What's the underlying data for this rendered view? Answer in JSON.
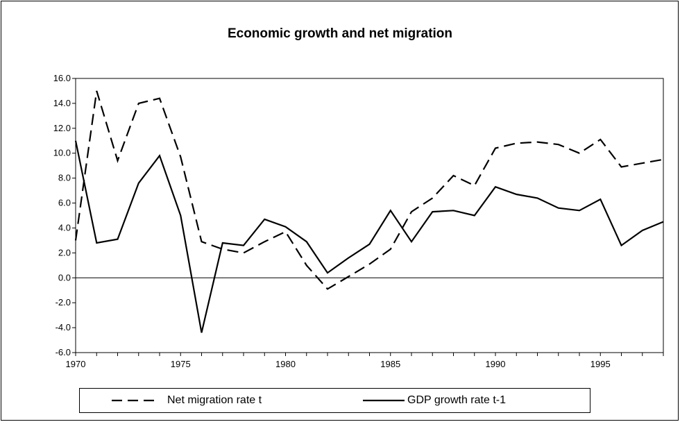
{
  "chart_data": {
    "type": "line",
    "title": "Economic growth and net migration",
    "xlabel": "",
    "ylabel": "",
    "xlim": [
      1970,
      1998
    ],
    "ylim": [
      -6.0,
      16.0
    ],
    "x_ticks": [
      1970,
      1975,
      1980,
      1985,
      1990,
      1995
    ],
    "x_tick_labels": [
      "1970",
      "1975",
      "1980",
      "1985",
      "1990",
      "1995"
    ],
    "y_ticks": [
      16,
      14,
      12,
      10,
      8,
      6,
      4,
      2,
      0,
      -2,
      -4,
      -6
    ],
    "y_tick_labels": [
      "16.0",
      "14.0",
      "12.0",
      "10.0",
      "8.0",
      "6.0",
      "4.0",
      "2.0",
      "0.0",
      "-2.0",
      "-4.0",
      "-6.0"
    ],
    "grid": false,
    "zero_line": true,
    "legend": "bottom",
    "x": [
      1970,
      1971,
      1972,
      1973,
      1974,
      1975,
      1976,
      1977,
      1978,
      1979,
      1980,
      1981,
      1982,
      1983,
      1984,
      1985,
      1986,
      1987,
      1988,
      1989,
      1990,
      1991,
      1992,
      1993,
      1994,
      1995,
      1996,
      1997,
      1998
    ],
    "series": [
      {
        "name": "Net migration rate t",
        "style": "dashed",
        "color": "#000000",
        "values": [
          3.0,
          15.0,
          9.4,
          14.0,
          14.4,
          9.7,
          2.9,
          2.3,
          2.0,
          2.9,
          3.7,
          1.0,
          -0.9,
          0.1,
          1.1,
          2.3,
          5.3,
          6.4,
          8.2,
          7.4,
          10.4,
          10.8,
          10.9,
          10.7,
          10.0,
          11.1,
          8.9,
          9.2,
          9.5
        ]
      },
      {
        "name": "GDP growth rate t-1",
        "style": "solid",
        "color": "#000000",
        "values": [
          11.0,
          2.8,
          3.1,
          7.6,
          9.8,
          5.0,
          -4.4,
          2.8,
          2.6,
          4.7,
          4.1,
          2.9,
          0.4,
          1.6,
          2.7,
          5.4,
          2.9,
          5.3,
          5.4,
          5.0,
          7.3,
          6.7,
          6.4,
          5.6,
          5.4,
          6.3,
          2.6,
          3.8,
          4.5
        ]
      }
    ]
  }
}
